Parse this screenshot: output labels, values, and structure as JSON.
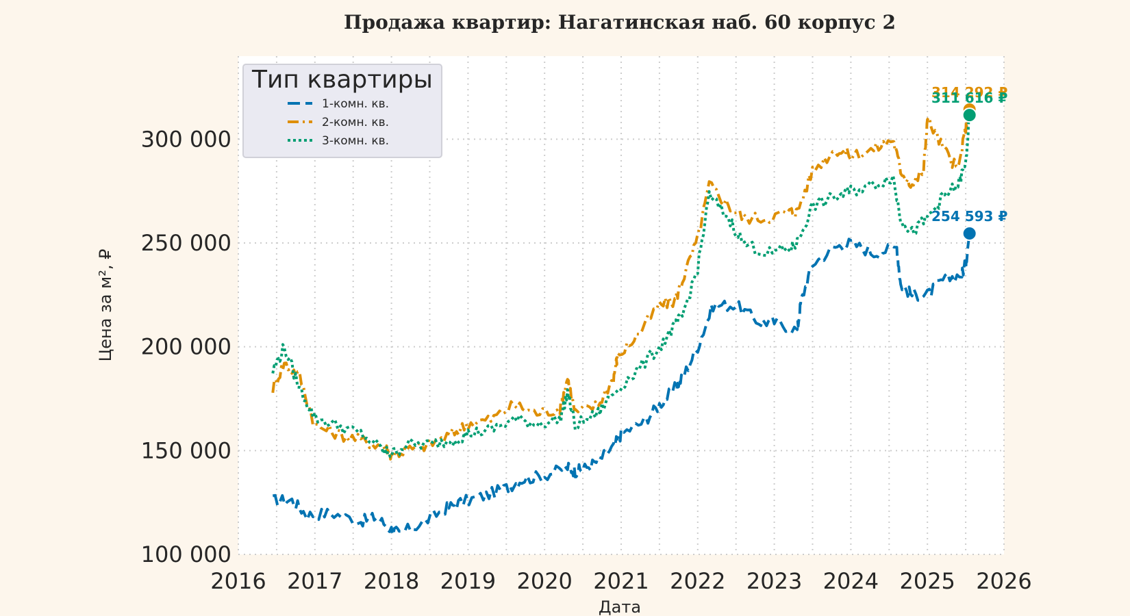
{
  "chart_data": {
    "type": "line",
    "title": "Продажа квартир: Нагатинская наб. 60 корпус 2",
    "xlabel": "Дата",
    "ylabel": "Цена за м², ₽",
    "xlim": [
      2016,
      2026
    ],
    "ylim": [
      100000,
      340000
    ],
    "x_ticks": [
      "2016",
      "2017",
      "2018",
      "2019",
      "2020",
      "2021",
      "2022",
      "2023",
      "2024",
      "2025",
      "2026"
    ],
    "y_ticks": [
      {
        "value": 100000,
        "label": "100 000"
      },
      {
        "value": 150000,
        "label": "150 000"
      },
      {
        "value": 200000,
        "label": "200 000"
      },
      {
        "value": 250000,
        "label": "250 000"
      },
      {
        "value": 300000,
        "label": "300 000"
      }
    ],
    "grid": true,
    "legend": {
      "title": "Тип квартиры",
      "position": "top-left"
    },
    "series": [
      {
        "name": "1-комн. кв.",
        "color": "#0173b2",
        "dash": "dashed",
        "end_label": "254 593 ₽",
        "end_value": 254593,
        "x": [
          2016.45,
          2016.7,
          2016.9,
          2017.2,
          2017.6,
          2017.8,
          2018.0,
          2018.1,
          2018.4,
          2018.7,
          2018.9,
          2019.2,
          2019.5,
          2019.7,
          2020.0,
          2020.3,
          2020.4,
          2020.5,
          2020.7,
          2020.9,
          2021.0,
          2021.3,
          2021.5,
          2021.7,
          2021.8,
          2022.0,
          2022.2,
          2022.5,
          2022.8,
          2023.0,
          2023.3,
          2023.35,
          2023.5,
          2023.8,
          2024.0,
          2024.3,
          2024.6,
          2024.65,
          2024.8,
          2025.0,
          2025.2,
          2025.45,
          2025.5,
          2025.55
        ],
        "values": [
          126000,
          126000,
          119000,
          120000,
          116000,
          118000,
          112000,
          110000,
          115000,
          122000,
          125000,
          128000,
          132000,
          136000,
          138000,
          142000,
          140000,
          141000,
          145000,
          152000,
          158000,
          164000,
          172000,
          180000,
          185000,
          200000,
          220000,
          220000,
          212000,
          212000,
          208000,
          222000,
          240000,
          248000,
          250000,
          245000,
          248000,
          230000,
          225000,
          225000,
          232000,
          235000,
          240000,
          254593
        ]
      },
      {
        "name": "2-комн. кв.",
        "color": "#de8f05",
        "dash": "dashdot",
        "end_label": "314 292 ₽",
        "end_value": 314292,
        "x": [
          2016.45,
          2016.6,
          2016.8,
          2017.0,
          2017.3,
          2017.6,
          2017.9,
          2018.0,
          2018.2,
          2018.5,
          2018.8,
          2019.0,
          2019.3,
          2019.6,
          2019.9,
          2020.2,
          2020.3,
          2020.4,
          2020.7,
          2020.9,
          2020.95,
          2021.2,
          2021.5,
          2021.7,
          2021.8,
          2022.0,
          2022.15,
          2022.4,
          2022.6,
          2022.9,
          2023.2,
          2023.3,
          2023.5,
          2023.8,
          2024.0,
          2024.3,
          2024.55,
          2024.65,
          2024.8,
          2024.95,
          2025.0,
          2025.2,
          2025.4,
          2025.5,
          2025.55
        ],
        "values": [
          180000,
          192000,
          186000,
          162000,
          158000,
          155000,
          152000,
          148000,
          150000,
          153000,
          158000,
          163000,
          165000,
          172000,
          168000,
          170000,
          185000,
          168000,
          172000,
          185000,
          195000,
          205000,
          220000,
          222000,
          232000,
          252000,
          278000,
          268000,
          262000,
          262000,
          265000,
          265000,
          285000,
          295000,
          292000,
          295000,
          300000,
          285000,
          278000,
          285000,
          310000,
          296000,
          285000,
          305000,
          314292
        ]
      },
      {
        "name": "3-комн. кв.",
        "color": "#029e73",
        "dash": "dotted",
        "end_label": "311 616 ₽",
        "end_value": 311616,
        "x": [
          2016.45,
          2016.6,
          2016.8,
          2017.0,
          2017.3,
          2017.6,
          2017.9,
          2018.0,
          2018.2,
          2018.5,
          2018.8,
          2019.0,
          2019.3,
          2019.6,
          2019.9,
          2020.2,
          2020.3,
          2020.4,
          2020.7,
          2020.9,
          2021.2,
          2021.5,
          2021.7,
          2021.8,
          2022.0,
          2022.15,
          2022.4,
          2022.6,
          2022.9,
          2023.2,
          2023.3,
          2023.5,
          2023.8,
          2024.0,
          2024.3,
          2024.55,
          2024.65,
          2024.8,
          2025.0,
          2025.2,
          2025.4,
          2025.5,
          2025.55
        ],
        "values": [
          188000,
          200000,
          180000,
          166000,
          162000,
          158000,
          150000,
          148000,
          153000,
          153000,
          155000,
          158000,
          160000,
          165000,
          163000,
          165000,
          178000,
          162000,
          168000,
          178000,
          188000,
          200000,
          210000,
          215000,
          238000,
          273000,
          262000,
          250000,
          245000,
          247000,
          250000,
          268000,
          272000,
          275000,
          278000,
          282000,
          262000,
          255000,
          262000,
          272000,
          278000,
          288000,
          311616
        ]
      }
    ]
  }
}
